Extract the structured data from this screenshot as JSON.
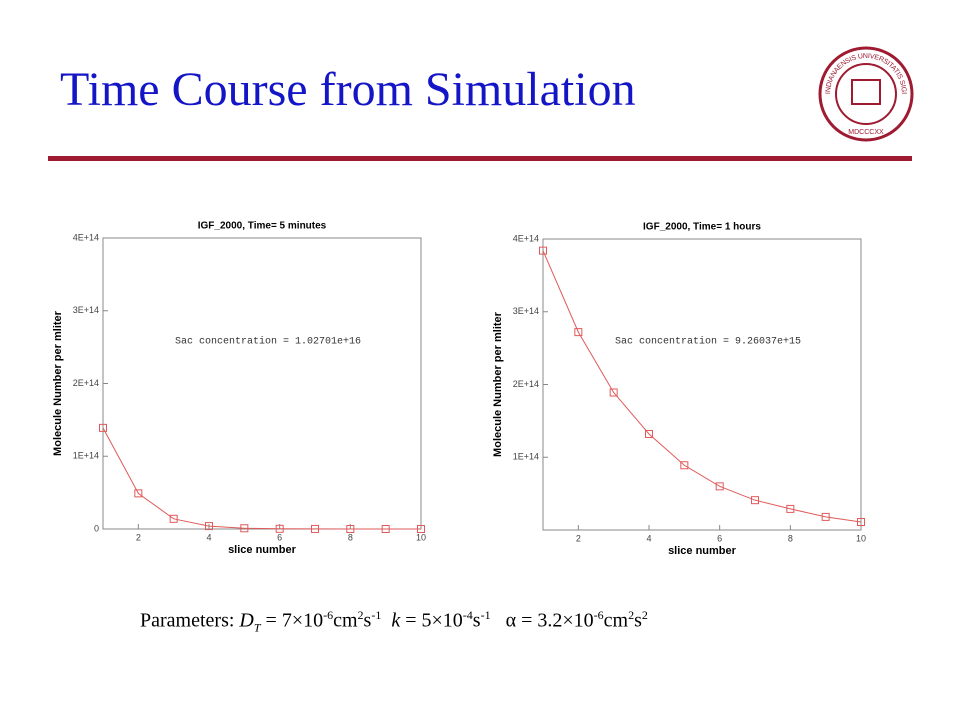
{
  "title": "Time Course from Simulation",
  "seal": {
    "top": "INDIANAENSIS UNIVERSITATIS SIGILLUM",
    "bottom": "MDCCCXX"
  },
  "chart_data": [
    {
      "type": "line",
      "title": "IGF_2000, Time= 5 minutes",
      "xlabel": "slice number",
      "ylabel": "Molecule Number per mliter",
      "annotation": "Sac concentration = 1.02701e+16",
      "color": "#e05a5a",
      "marker": "square",
      "x": [
        1,
        2,
        3,
        4,
        5,
        6,
        7,
        8,
        9,
        10
      ],
      "values": [
        139000000000000,
        49000000000000,
        14000000000000,
        4000000000000,
        1000000000000,
        300000000000,
        100000000000,
        0,
        0,
        0
      ],
      "xlim": [
        1,
        10
      ],
      "xticks": [
        2,
        4,
        6,
        8,
        10
      ],
      "ylim": [
        0,
        400000000000000
      ],
      "yticks": [
        0,
        {
          "value": 100000000000000,
          "label": "1E+14"
        },
        {
          "value": 200000000000000,
          "label": "2E+14"
        },
        {
          "value": 300000000000000,
          "label": "3E+14"
        },
        {
          "value": 400000000000000,
          "label": "4E+14"
        }
      ]
    },
    {
      "type": "line",
      "title": "IGF_2000, Time= 1 hours",
      "xlabel": "slice number",
      "ylabel": "Molecule Number per mliter",
      "annotation": "Sac concentration = 9.26037e+15",
      "color": "#e05a5a",
      "marker": "square",
      "x": [
        1,
        2,
        3,
        4,
        5,
        6,
        7,
        8,
        9,
        10
      ],
      "values": [
        384000000000000,
        272000000000000,
        189000000000000,
        132000000000000,
        89000000000000,
        60000000000000,
        41000000000000,
        29000000000000,
        18000000000000,
        11000000000000
      ],
      "xlim": [
        1,
        10
      ],
      "xticks": [
        2,
        4,
        6,
        8,
        10
      ],
      "ylim": [
        0,
        400000000000000
      ],
      "yticks": [
        {
          "value": 100000000000000,
          "label": "1E+14"
        },
        {
          "value": 200000000000000,
          "label": "2E+14"
        },
        {
          "value": 300000000000000,
          "label": "3E+14"
        },
        {
          "value": 400000000000000,
          "label": "4E+14"
        }
      ]
    }
  ],
  "parameters": [
    "Parameters: ",
    "D",
    "T",
    " = 7×10",
    "-6",
    "cm",
    "2",
    "s",
    "-1",
    "k",
    " = 5×10",
    "-4",
    "s",
    "-1",
    "α",
    " = 3.2×10",
    "-6",
    "cm",
    "2",
    "s",
    "2"
  ]
}
